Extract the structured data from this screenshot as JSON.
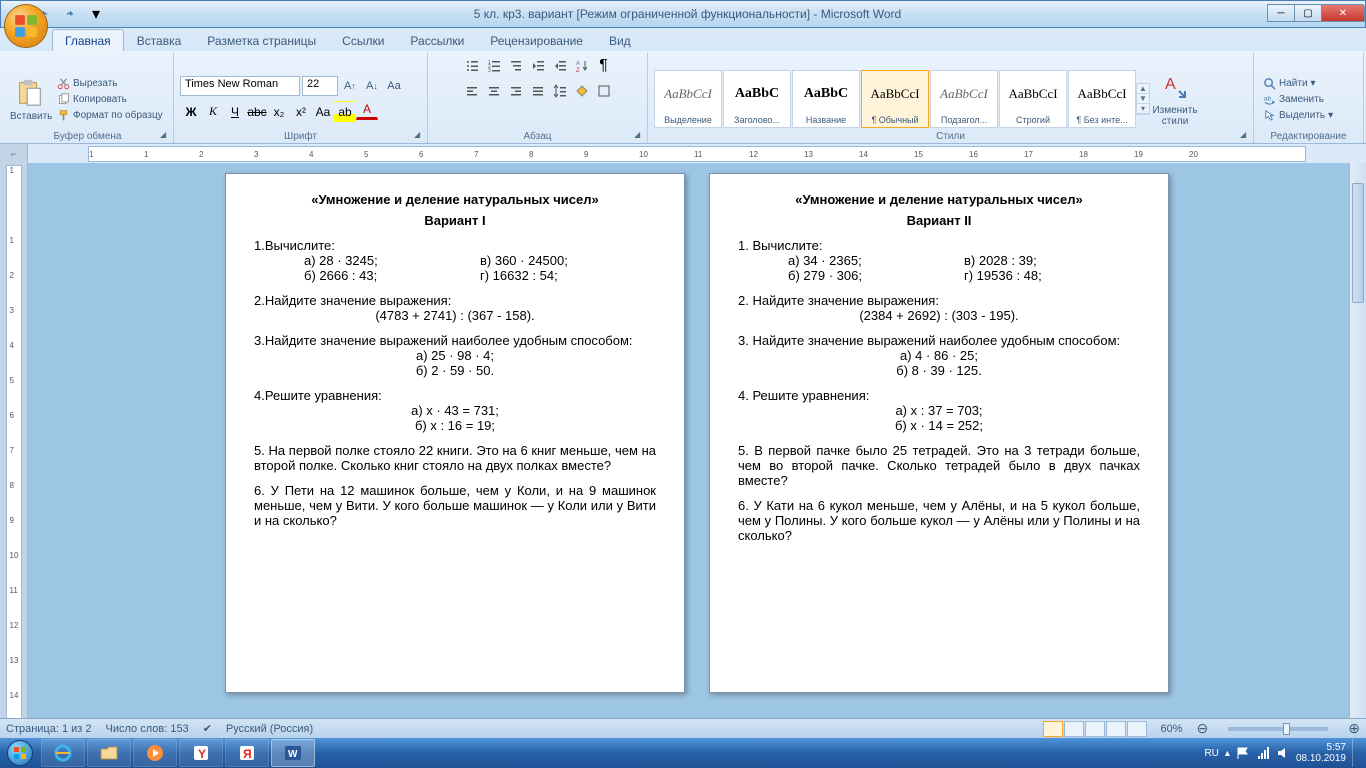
{
  "title": "5 кл. кр3. вариант [Режим ограниченной функциональности] - Microsoft Word",
  "tabs": [
    "Главная",
    "Вставка",
    "Разметка страницы",
    "Ссылки",
    "Рассылки",
    "Рецензирование",
    "Вид"
  ],
  "activeTab": 0,
  "clipboard": {
    "paste": "Вставить",
    "cut": "Вырезать",
    "copy": "Копировать",
    "format": "Формат по образцу",
    "label": "Буфер обмена"
  },
  "font": {
    "name": "Times New Roman",
    "size": "22",
    "label": "Шрифт"
  },
  "paragraph": {
    "label": "Абзац"
  },
  "styles": {
    "label": "Стили",
    "items": [
      {
        "preview": "AaBbCcI",
        "name": "Выделение",
        "cls": "italic"
      },
      {
        "preview": "AaBbC",
        "name": "Заголово...",
        "cls": "head"
      },
      {
        "preview": "AaBbC",
        "name": "Название",
        "cls": "head"
      },
      {
        "preview": "AaBbCcI",
        "name": "¶ Обычный",
        "cls": ""
      },
      {
        "preview": "AaBbCcI",
        "name": "Подзагол...",
        "cls": "italic"
      },
      {
        "preview": "AaBbCcI",
        "name": "Строгий",
        "cls": ""
      },
      {
        "preview": "AaBbCcI",
        "name": "¶ Без инте...",
        "cls": ""
      }
    ],
    "selected": 3,
    "change": "Изменить стили"
  },
  "editing": {
    "find": "Найти",
    "replace": "Заменить",
    "select": "Выделить",
    "label": "Редактирование"
  },
  "ruler_ticks": [
    "1",
    "1",
    "2",
    "3",
    "4",
    "5",
    "6",
    "7",
    "8",
    "9",
    "10",
    "11",
    "12",
    "13",
    "14",
    "15",
    "16",
    "17",
    "18",
    "19",
    "20"
  ],
  "vruler_ticks": [
    "1",
    "",
    "1",
    "2",
    "3",
    "4",
    "5",
    "6",
    "7",
    "8",
    "9",
    "10",
    "11",
    "12",
    "13",
    "14"
  ],
  "status": {
    "page": "Страница: 1 из 2",
    "words": "Число слов: 153",
    "lang": "Русский (Россия)",
    "zoom": "60%"
  },
  "tray": {
    "lang": "RU",
    "time": "5:57",
    "date": "08.10.2019"
  },
  "doc": {
    "variants": [
      {
        "title": "«Умножение и деление натуральных чисел»",
        "variant": "Вариант I",
        "q1": {
          "label": "1.Вычислите:",
          "a": "а) 28 · 3245;",
          "b": "б) 2666 : 43;",
          "v": "в) 360 · 24500;",
          "g": "г) 16632 : 54;"
        },
        "q2": {
          "label": "2.Найдите значение выражения:",
          "expr": "(4783 + 2741) : (367 - 158)."
        },
        "q3": {
          "label": "3.Найдите  значение  выражений  наиболее  удобным способом:",
          "a": "а) 25 · 98 · 4;",
          "b": "б) 2 · 59 · 50."
        },
        "q4": {
          "label": "4.Решите уравнения:",
          "a": "а) x · 43 = 731;",
          "b": "б) x : 16 = 19;"
        },
        "q5": "5.  На первой полке стояло 22 книги. Это на 6 книг меньше, чем на второй полке. Сколько книг стояло на двух полках вместе?",
        "q6": "6.  У Пети на 12 машинок больше, чем у Коли, и на 9 машинок меньше, чем у Вити. У кого больше машинок — у Коли или у Вити и на сколько?"
      },
      {
        "title": "«Умножение и деление натуральных чисел»",
        "variant": "Вариант II",
        "q1": {
          "label": "1.  Вычислите:",
          "a": "а) 34 · 2365;",
          "b": "б) 279 · 306;",
          "v": "в) 2028 : 39;",
          "g": "г) 19536 : 48;"
        },
        "q2": {
          "label": "2.  Найдите значение выражения:",
          "expr": "(2384 + 2692) : (303 - 195)."
        },
        "q3": {
          "label": "3.  Найдите  значение  выражений  наиболее  удобным способом:",
          "a": "а) 4 · 86 · 25;",
          "b": "б) 8 · 39 · 125."
        },
        "q4": {
          "label": "4.  Решите уравнения:",
          "a": "а) x : 37 = 703;",
          "b": "б) x · 14 = 252;"
        },
        "q5": "5.  В первой пачке было 25 тетрадей. Это на 3 тетради больше, чем во второй пачке. Сколько тетрадей было в двух пачках вместе?",
        "q6": "6.  У Кати на 6 кукол меньше, чем у Алёны, и на 5 кукол больше, чем у Полины. У кого больше кукол — у Алёны или у Полины и на сколько?"
      }
    ]
  }
}
